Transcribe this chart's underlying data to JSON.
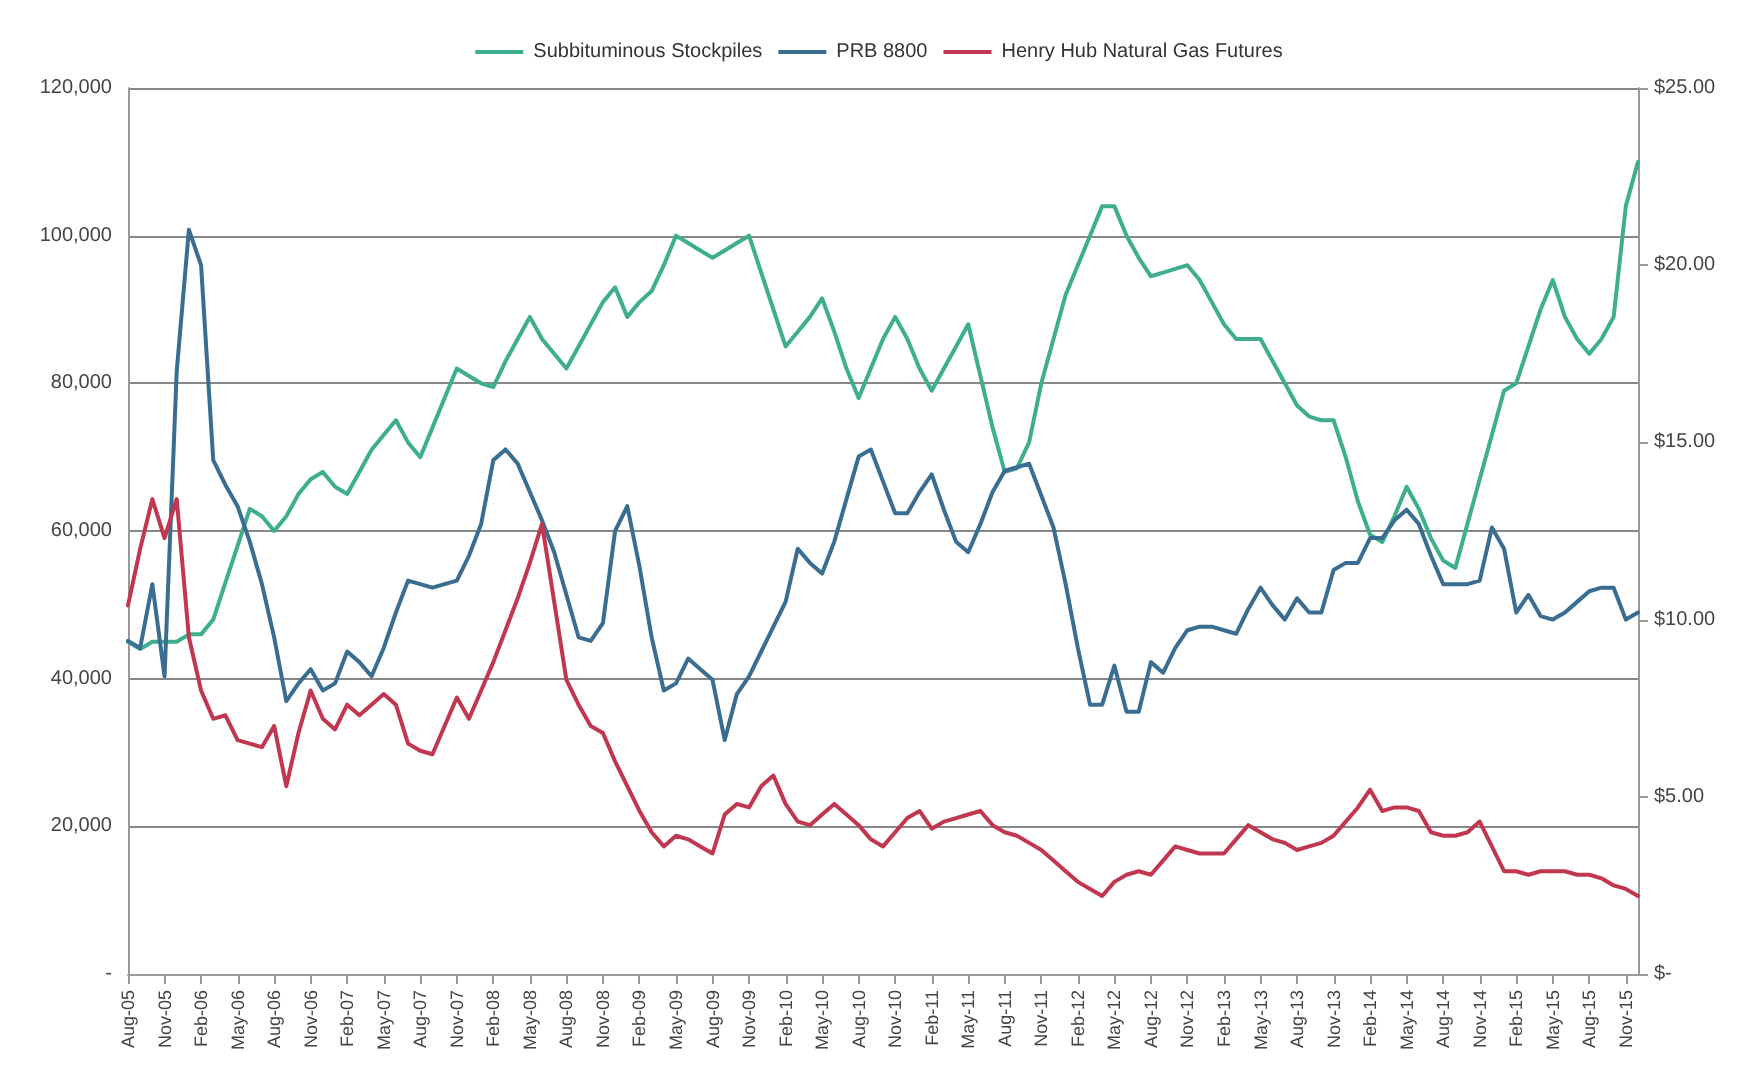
{
  "chart_data": {
    "type": "line",
    "categories": [
      "Aug-05",
      null,
      null,
      "Nov-05",
      null,
      null,
      "Feb-06",
      null,
      null,
      "May-06",
      null,
      null,
      "Aug-06",
      null,
      null,
      "Nov-06",
      null,
      null,
      "Feb-07",
      null,
      null,
      "May-07",
      null,
      null,
      "Aug-07",
      null,
      null,
      "Nov-07",
      null,
      null,
      "Feb-08",
      null,
      null,
      "May-08",
      null,
      null,
      "Aug-08",
      null,
      null,
      "Nov-08",
      null,
      null,
      "Feb-09",
      null,
      null,
      "May-09",
      null,
      null,
      "Aug-09",
      null,
      null,
      "Nov-09",
      null,
      null,
      "Feb-10",
      null,
      null,
      "May-10",
      null,
      null,
      "Aug-10",
      null,
      null,
      "Nov-10",
      null,
      null,
      "Feb-11",
      null,
      null,
      "May-11",
      null,
      null,
      "Aug-11",
      null,
      null,
      "Nov-11",
      null,
      null,
      "Feb-12",
      null,
      null,
      "May-12",
      null,
      null,
      "Aug-12",
      null,
      null,
      "Nov-12",
      null,
      null,
      "Feb-13",
      null,
      null,
      "May-13",
      null,
      null,
      "Aug-13",
      null,
      null,
      "Nov-13",
      null,
      null,
      "Feb-14",
      null,
      null,
      "May-14",
      null,
      null,
      "Aug-14",
      null,
      null,
      "Nov-14",
      null,
      null,
      "Feb-15",
      null,
      null,
      "May-15",
      null,
      null,
      "Aug-15",
      null,
      null,
      "Nov-15",
      null
    ],
    "series": [
      {
        "name": "Subbituminous Stockpiles",
        "color": "#3fae8f",
        "values": [
          45000,
          44000,
          45000,
          45000,
          45000,
          46000,
          46000,
          48000,
          53000,
          58000,
          63000,
          62000,
          60000,
          62000,
          65000,
          67000,
          68000,
          66000,
          65000,
          68000,
          71000,
          73000,
          75000,
          72000,
          70000,
          74000,
          78000,
          82000,
          81000,
          80000,
          79500,
          83000,
          86000,
          89000,
          86000,
          84000,
          82000,
          85000,
          88000,
          91000,
          93000,
          89000,
          91000,
          92500,
          96000,
          100000,
          99000,
          98000,
          97000,
          98000,
          99000,
          100000,
          95000,
          90000,
          85000,
          87000,
          89000,
          91500,
          87000,
          82000,
          78000,
          82000,
          86000,
          89000,
          86000,
          82000,
          79000,
          82000,
          85000,
          88000,
          81000,
          74000,
          68000,
          68500,
          72000,
          80000,
          86000,
          92000,
          96000,
          100000,
          104000,
          104000,
          100000,
          97000,
          94500,
          95000,
          95500,
          96000,
          94000,
          91000,
          88000,
          86000,
          86000,
          86000,
          83000,
          80000,
          77000,
          75500,
          75000,
          75000,
          70000,
          64000,
          59500,
          58500,
          62000,
          66000,
          63000,
          59000,
          56000,
          55000,
          61000,
          67000,
          73000,
          79000,
          80000,
          85000,
          90000,
          94000,
          89000,
          86000,
          84000,
          86000,
          89000,
          104000,
          110000
        ]
      },
      {
        "name": "PRB 8800",
        "color": "#3a6d92",
        "axis": "y2",
        "values": [
          9.4,
          9.2,
          11.0,
          8.4,
          17,
          21,
          20,
          14.5,
          13.8,
          13.2,
          12.2,
          11,
          9.5,
          7.7,
          8.2,
          8.6,
          8.0,
          8.2,
          9.1,
          8.8,
          8.4,
          9.2,
          10.2,
          11.1,
          11.0,
          10.9,
          11.0,
          11.1,
          11.8,
          12.7,
          14.5,
          14.8,
          14.4,
          13.6,
          12.8,
          11.9,
          10.7,
          9.5,
          9.4,
          9.9,
          12.5,
          13.2,
          11.5,
          9.5,
          8.0,
          8.2,
          8.9,
          8.6,
          8.3,
          6.6,
          7.9,
          8.4,
          9.1,
          9.8,
          10.5,
          12.0,
          11.6,
          11.3,
          12.2,
          13.4,
          14.6,
          14.8,
          13.9,
          13.0,
          13.0,
          13.6,
          14.1,
          13.1,
          12.2,
          11.9,
          12.7,
          13.6,
          14.2,
          14.3,
          14.4,
          13.5,
          12.6,
          11.0,
          9.2,
          7.6,
          7.6,
          8.7,
          7.4,
          7.4,
          8.8,
          8.5,
          9.2,
          9.7,
          9.8,
          9.8,
          9.7,
          9.6,
          10.3,
          10.9,
          10.4,
          10.0,
          10.6,
          10.2,
          10.2,
          11.4,
          11.6,
          11.6,
          12.3,
          12.3,
          12.8,
          13.1,
          12.7,
          11.8,
          11.0,
          11.0,
          11.0,
          11.1,
          12.6,
          12.0,
          10.2,
          10.7,
          10.1,
          10.0,
          10.2,
          10.5,
          10.8,
          10.9,
          10.9,
          10.0,
          10.2
        ]
      },
      {
        "name": "Henry Hub Natural Gas Futures",
        "color": "#c0374f",
        "axis": "y2",
        "values": [
          10.4,
          12.0,
          13.4,
          12.3,
          13.4,
          9.5,
          8.0,
          7.2,
          7.3,
          6.6,
          6.5,
          6.4,
          7.0,
          5.3,
          6.8,
          8.0,
          7.2,
          6.9,
          7.6,
          7.3,
          7.6,
          7.9,
          7.6,
          6.5,
          6.3,
          6.2,
          7.0,
          7.8,
          7.2,
          8.0,
          8.8,
          9.7,
          10.6,
          11.6,
          12.7,
          10.5,
          8.3,
          7.6,
          7.0,
          6.8,
          6.0,
          5.3,
          4.6,
          4.0,
          3.6,
          3.9,
          3.8,
          3.6,
          3.4,
          4.5,
          4.8,
          4.7,
          5.3,
          5.6,
          4.8,
          4.3,
          4.2,
          4.5,
          4.8,
          4.5,
          4.2,
          3.8,
          3.6,
          4.0,
          4.4,
          4.6,
          4.1,
          4.3,
          4.4,
          4.5,
          4.6,
          4.2,
          4.0,
          3.9,
          3.7,
          3.5,
          3.2,
          2.9,
          2.6,
          2.4,
          2.2,
          2.6,
          2.8,
          2.9,
          2.8,
          3.2,
          3.6,
          3.5,
          3.4,
          3.4,
          3.4,
          3.8,
          4.2,
          4.0,
          3.8,
          3.7,
          3.5,
          3.6,
          3.7,
          3.9,
          4.3,
          4.7,
          5.2,
          4.6,
          4.7,
          4.7,
          4.6,
          4.0,
          3.9,
          3.9,
          4.0,
          4.3,
          3.6,
          2.9,
          2.9,
          2.8,
          2.9,
          2.9,
          2.9,
          2.8,
          2.8,
          2.7,
          2.5,
          2.4,
          2.2
        ]
      }
    ],
    "ylim": [
      0,
      120000
    ],
    "yticks": [
      {
        "value": 0,
        "label": "-"
      },
      {
        "value": 20000,
        "label": "20,000"
      },
      {
        "value": 40000,
        "label": "40,000"
      },
      {
        "value": 60000,
        "label": "60,000"
      },
      {
        "value": 80000,
        "label": "80,000"
      },
      {
        "value": 100000,
        "label": "100,000"
      },
      {
        "value": 120000,
        "label": "120,000"
      }
    ],
    "y2lim": [
      0,
      25
    ],
    "y2ticks": [
      {
        "value": 0,
        "label": "$-"
      },
      {
        "value": 5,
        "label": "$5.00"
      },
      {
        "value": 10,
        "label": "$10.00"
      },
      {
        "value": 15,
        "label": "$15.00"
      },
      {
        "value": 20,
        "label": "$20.00"
      },
      {
        "value": 25,
        "label": "$25.00"
      }
    ],
    "grid": "y",
    "legend": "top",
    "marker": "none",
    "line_style": "solid"
  }
}
